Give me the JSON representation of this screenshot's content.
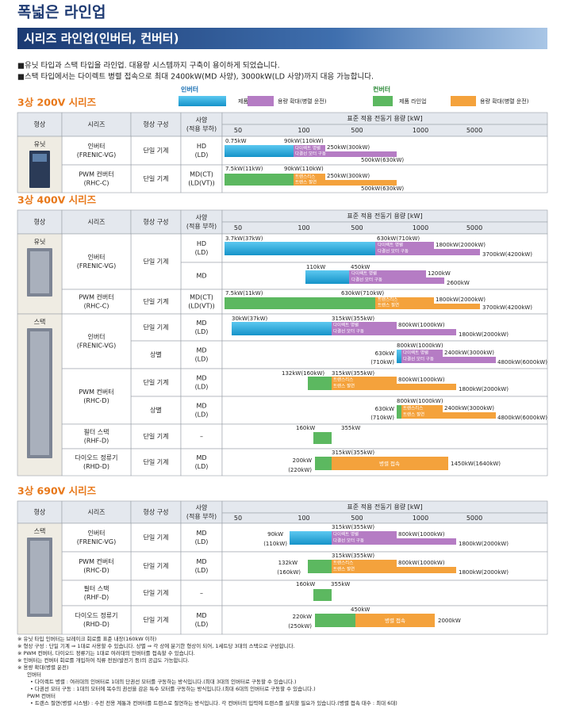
{
  "title": "폭넓은 라인업",
  "banner": "시리즈 라인업(인버터, 컨버터)",
  "intro": [
    "■유닛 타입과 스택 타입을 라인업. 대용량 시스템까지 구축이 용이하게 되었습니다.",
    "■스택 타입에서는 다이렉트 병렬 접속으로 최대 2400kW(MD 사양), 3000kW(LD 사양)까지 대응 가능합니다."
  ],
  "legend": {
    "inverter": "인버터",
    "converter": "컨버터",
    "items": [
      "제품 라인업",
      "용량 확대(병렬 운전)",
      "제품 라인업",
      "용량 확대(병렬 운전)"
    ]
  },
  "headers": {
    "shape": "형상",
    "series": "시리즈",
    "config": "형상 구성",
    "spec": [
      "사양",
      "(적용 부하)"
    ],
    "capacity": "표준 적용 전동기 용량 [kW]",
    "scale": [
      50,
      100,
      500,
      1000,
      5000
    ]
  },
  "sections": [
    {
      "title": "3상 200V 시리즈",
      "groups": [
        {
          "shape": "유닛",
          "series": [
            {
              "name": [
                "인버터",
                "(FRENIC-VG)"
              ],
              "rows": [
                {
                  "config": "단일 기계",
                  "spec": [
                    "HD",
                    "(LD)"
                  ],
                  "labels": [
                    "0.75kW",
                    "90kW(110kW)",
                    "다이렉트 병렬",
                    "다결선 모터 구동",
                    "250kW(300kW)",
                    "500kW(630kW)"
                  ]
                }
              ]
            },
            {
              "name": [
                "PWM 컨버터",
                "(RHC-C)"
              ],
              "rows": [
                {
                  "config": "단일 기계",
                  "spec": [
                    "MD(CT)",
                    "(LD(VT))"
                  ],
                  "labels": [
                    "7.5kW(11kW)",
                    "90kW(110kW)",
                    "트랜스리스",
                    "트랜스 절연",
                    "250kW(300kW)",
                    "500kW(630kW)"
                  ]
                }
              ]
            }
          ]
        }
      ]
    },
    {
      "title": "3상 400V 시리즈",
      "groups": [
        {
          "shape": "유닛",
          "series": [
            {
              "name": [
                "인버터",
                "(FRENIC-VG)"
              ],
              "config": "단일 기계",
              "rows": [
                {
                  "spec": [
                    "HD",
                    "(LD)"
                  ],
                  "labels": [
                    "3.7kW(37kW)",
                    "630kW(710kW)",
                    "다이렉트 병렬",
                    "다결선 모터 구동",
                    "1800kW(2000kW)",
                    "3700kW(4200kW)"
                  ]
                },
                {
                  "spec": [
                    "MD"
                  ],
                  "labels": [
                    "110kW",
                    "450kW",
                    "다이렉트 병렬",
                    "다결선 모터 구동",
                    "1200kW",
                    "2600kW"
                  ]
                }
              ]
            },
            {
              "name": [
                "PWM 컨버터",
                "(RHC-C)"
              ],
              "rows": [
                {
                  "config": "단일 기계",
                  "spec": [
                    "MD(CT)",
                    "(LD(VT))"
                  ],
                  "labels": [
                    "7.5kW(11kW)",
                    "630kW(710kW)",
                    "트랜스리스",
                    "트랜스 절연",
                    "1800kW(2000kW)",
                    "3700kW(4200kW)"
                  ]
                }
              ]
            }
          ]
        },
        {
          "shape": "스택",
          "series": [
            {
              "name": [
                "인버터",
                "(FRENIC-VG)"
              ],
              "rows": [
                {
                  "config": "단일 기계",
                  "spec": [
                    "MD",
                    "(LD)"
                  ],
                  "labels": [
                    "30kW(37kW)",
                    "315kW(355kW)",
                    "다이렉트 병렬",
                    "다결선 모터 구동",
                    "800kW(1000kW)",
                    "1800kW(2000kW)"
                  ]
                },
                {
                  "config": "상별",
                  "spec": [
                    "MD",
                    "(LD)"
                  ],
                  "labels": [
                    "800kW(1000kW)",
                    "630kW",
                    "(710kW)",
                    "다이렉트 병렬",
                    "다결선 모터 구동",
                    "2400kW(3000kW)",
                    "4800kW(6000kW)"
                  ]
                }
              ]
            },
            {
              "name": [
                "PWM 컨버터",
                "(RHC-D)"
              ],
              "rows": [
                {
                  "config": "단일 기계",
                  "spec": [
                    "MD",
                    "(LD)"
                  ],
                  "labels": [
                    "132kW(160kW)",
                    "315kW(355kW)",
                    "트랜스리스",
                    "트랜스 절연",
                    "800kW(1000kW)",
                    "1800kW(2000kW)"
                  ]
                },
                {
                  "config": "상별",
                  "spec": [
                    "MD",
                    "(LD)"
                  ],
                  "labels": [
                    "800kW(1000kW)",
                    "630kW",
                    "(710kW)",
                    "트랜스리스",
                    "트랜스 절연",
                    "2400kW(3000kW)",
                    "4800kW(6000kW)"
                  ]
                }
              ]
            },
            {
              "name": [
                "필터 스택",
                "(RHF-D)"
              ],
              "rows": [
                {
                  "config": "단일 기계",
                  "spec": [
                    "–"
                  ],
                  "labels": [
                    "160kW",
                    "355kW"
                  ]
                }
              ]
            },
            {
              "name": [
                "다이오드 정류기",
                "(RHD-D)"
              ],
              "rows": [
                {
                  "config": "단일 기계",
                  "spec": [
                    "MD",
                    "(LD)"
                  ],
                  "labels": [
                    "315kW(355kW)",
                    "200kW",
                    "(220kW)",
                    "병렬 접속",
                    "1450kW(1640kW)"
                  ]
                }
              ]
            }
          ]
        }
      ]
    },
    {
      "title": "3상 690V 시리즈",
      "groups": [
        {
          "shape": "스택",
          "series": [
            {
              "name": [
                "인버터",
                "(FRENIC-VG)"
              ],
              "rows": [
                {
                  "config": "단일 기계",
                  "spec": [
                    "MD",
                    "(LD)"
                  ],
                  "labels": [
                    "315kW(355kW)",
                    "90kW",
                    "(110kW)",
                    "다이렉트 병렬",
                    "다결선 모터 구동",
                    "800kW(1000kW)",
                    "1800kW(2000kW)"
                  ]
                }
              ]
            },
            {
              "name": [
                "PWM 컨버터",
                "(RHC-D)"
              ],
              "rows": [
                {
                  "config": "단일 기계",
                  "spec": [
                    "MD",
                    "(LD)"
                  ],
                  "labels": [
                    "315kW(355kW)",
                    "132kW",
                    "(160kW)",
                    "트랜스리스",
                    "트랜스 절연",
                    "800kW(1000kW)",
                    "1800kW(2000kW)"
                  ]
                }
              ]
            },
            {
              "name": [
                "필터 스택",
                "(RHF-D)"
              ],
              "rows": [
                {
                  "config": "단일 기계",
                  "spec": [
                    "–"
                  ],
                  "labels": [
                    "160kW",
                    "355kW"
                  ]
                }
              ]
            },
            {
              "name": [
                "다이오드 정류기",
                "(RHD-D)"
              ],
              "rows": [
                {
                  "config": "단일 기계",
                  "spec": [
                    "MD",
                    "(LD)"
                  ],
                  "labels": [
                    "450kW",
                    "220kW",
                    "(250kW)",
                    "병렬 접속",
                    "2000kW"
                  ]
                }
              ]
            }
          ]
        }
      ]
    }
  ],
  "notes": [
    "※ 유닛 타입 인버터는 브레이크 회로를 표준 내장(160kW 이하)",
    "※ 형상 구성 : 단일 기계 ⇒ 1대로 사용할 수 있습니다. 상별 ⇒ 각 상에 분기한 형상이 되어, 1세트당 3대의 스택으로 구성합니다.",
    "※ PWM 컨버터, 다이오드 정류기는 1대로 여러대의 인버터를 접속할 수 있습니다.",
    "※ 인버터는 컨버터 회로를 개입하여 직류 전원(발전기 등)의 공급도 가능합니다.",
    "※ 용량 확대(병렬 운전)",
    "인버터",
    "• 다이렉트 병렬 : 여러대의 인버터로 1대의 단권선 모터를 구동하는 방식입니다.(최대 3대의 인버터로 구동할 수 있습니다.)",
    "• 다권선 모터 구동 : 1대의 모터에 복수의 권선을 감은 특수 모터를 구동하는 방식입니다.(최대 6대의 인버터로 구동할 수 있습니다.)",
    "PWM 컨버터",
    "• 트랜스 절연(병렬 시스템) : 수전 전용 계통과 컨버터를 트랜스로 절연하는 방식입니다. 각 컨버터의 입력에 트랜스를 설치할 필요가 있습니다.(병렬 접속 대수 : 최대 6대)"
  ]
}
